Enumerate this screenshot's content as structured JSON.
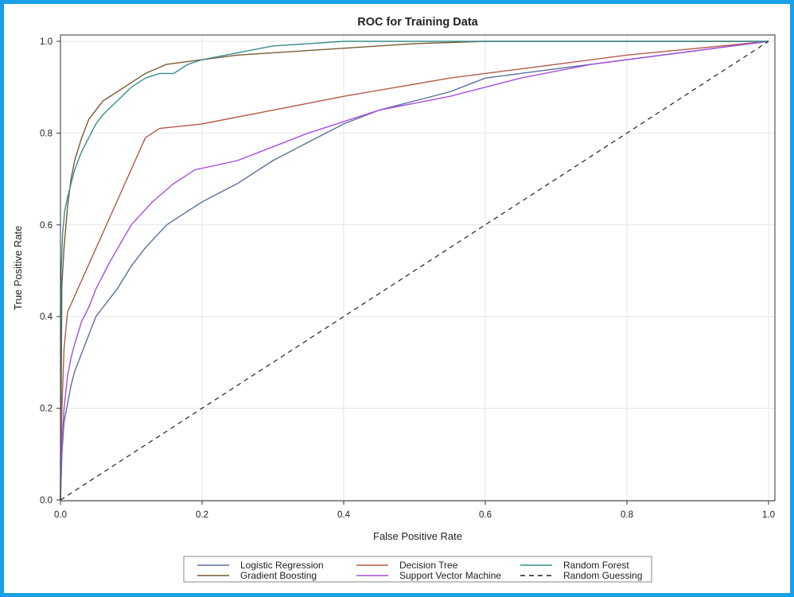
{
  "chart_data": {
    "type": "line",
    "title": "ROC for Training Data",
    "xlabel": "False Positive Rate",
    "ylabel": "True Positive Rate",
    "xlim": [
      0,
      1
    ],
    "ylim": [
      0,
      1
    ],
    "grid": true,
    "legend_position": "bottom",
    "x_ticks": [
      "0.0",
      "0.2",
      "0.4",
      "0.6",
      "0.8",
      "1.0"
    ],
    "y_ticks": [
      "0.0",
      "0.2",
      "0.4",
      "0.6",
      "0.8",
      "1.0"
    ],
    "series": [
      {
        "name": "Logistic Regression",
        "color": "#5a6f99",
        "dash": false,
        "x": [
          0,
          0.002,
          0.005,
          0.01,
          0.015,
          0.02,
          0.03,
          0.04,
          0.05,
          0.06,
          0.08,
          0.1,
          0.12,
          0.15,
          0.2,
          0.25,
          0.3,
          0.35,
          0.4,
          0.45,
          0.5,
          0.55,
          0.6,
          0.7,
          0.8,
          0.9,
          1.0
        ],
        "y": [
          0,
          0.1,
          0.17,
          0.21,
          0.25,
          0.28,
          0.32,
          0.36,
          0.4,
          0.42,
          0.46,
          0.51,
          0.55,
          0.6,
          0.65,
          0.69,
          0.74,
          0.78,
          0.82,
          0.85,
          0.87,
          0.89,
          0.92,
          0.94,
          0.96,
          0.98,
          1.0
        ]
      },
      {
        "name": "Gradient Boosting",
        "color": "#7a5a35",
        "dash": false,
        "x": [
          0,
          0.002,
          0.005,
          0.01,
          0.015,
          0.02,
          0.03,
          0.04,
          0.05,
          0.06,
          0.08,
          0.1,
          0.12,
          0.15,
          0.2,
          0.25,
          0.3,
          0.4,
          0.5,
          0.6,
          0.8,
          1.0
        ],
        "y": [
          0,
          0.47,
          0.55,
          0.64,
          0.7,
          0.74,
          0.79,
          0.83,
          0.85,
          0.87,
          0.89,
          0.91,
          0.93,
          0.95,
          0.96,
          0.97,
          0.975,
          0.985,
          0.995,
          1.0,
          1.0,
          1.0
        ]
      },
      {
        "name": "Decision Tree",
        "color": "#b55a4a",
        "dash": false,
        "x": [
          0,
          0.002,
          0.005,
          0.01,
          0.12,
          0.14,
          0.2,
          0.3,
          0.4,
          0.55,
          0.7,
          0.8,
          0.9,
          1.0
        ],
        "y": [
          0,
          0.2,
          0.33,
          0.41,
          0.79,
          0.81,
          0.82,
          0.85,
          0.88,
          0.92,
          0.95,
          0.97,
          0.985,
          1.0
        ]
      },
      {
        "name": "Support Vector Machine",
        "color": "#a64ee0",
        "dash": false,
        "x": [
          0,
          0.002,
          0.005,
          0.01,
          0.015,
          0.02,
          0.03,
          0.04,
          0.05,
          0.07,
          0.1,
          0.13,
          0.16,
          0.19,
          0.25,
          0.3,
          0.35,
          0.45,
          0.55,
          0.65,
          0.75,
          0.85,
          1.0
        ],
        "y": [
          0,
          0.12,
          0.2,
          0.27,
          0.31,
          0.34,
          0.39,
          0.42,
          0.46,
          0.52,
          0.6,
          0.65,
          0.69,
          0.72,
          0.74,
          0.77,
          0.8,
          0.85,
          0.88,
          0.92,
          0.95,
          0.97,
          1.0
        ]
      },
      {
        "name": "Random Forest",
        "color": "#3c8c8c",
        "dash": false,
        "x": [
          0,
          0.001,
          0.003,
          0.006,
          0.01,
          0.015,
          0.02,
          0.03,
          0.04,
          0.05,
          0.06,
          0.08,
          0.1,
          0.12,
          0.14,
          0.16,
          0.18,
          0.2,
          0.25,
          0.3,
          0.35,
          0.4,
          0.5,
          0.6,
          0.8,
          1.0
        ],
        "y": [
          0,
          0.5,
          0.58,
          0.63,
          0.66,
          0.69,
          0.72,
          0.76,
          0.79,
          0.82,
          0.84,
          0.87,
          0.9,
          0.92,
          0.93,
          0.93,
          0.95,
          0.96,
          0.975,
          0.99,
          0.995,
          1.0,
          1.0,
          1.0,
          1.0,
          1.0
        ]
      },
      {
        "name": "Random Guessing",
        "color": "#222222",
        "dash": true,
        "x": [
          0,
          1
        ],
        "y": [
          0,
          1
        ]
      }
    ],
    "legend_layout": [
      [
        "Logistic Regression",
        "Decision Tree",
        "Random Forest"
      ],
      [
        "Gradient Boosting",
        "Support Vector Machine",
        "Random Guessing"
      ]
    ]
  }
}
